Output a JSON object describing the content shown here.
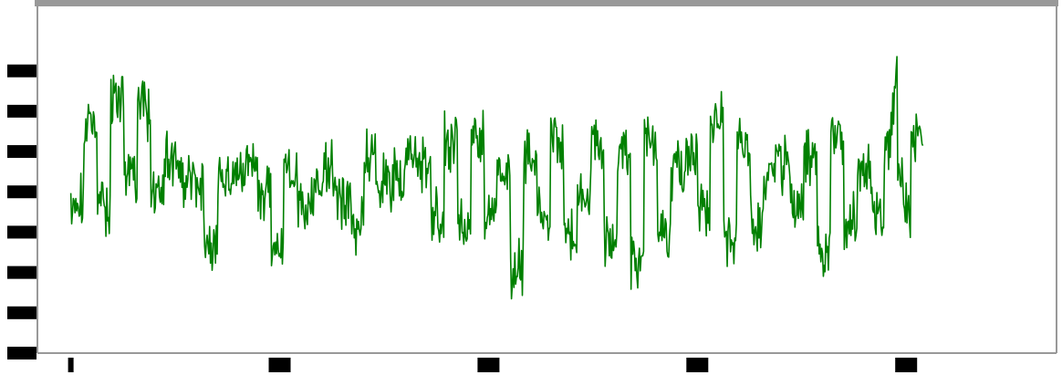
{
  "chart_data": {
    "type": "line",
    "title": "",
    "xlabel": "",
    "ylabel": "",
    "xlim": [
      -40,
      1180
    ],
    "ylim": [
      -4.0,
      4.6
    ],
    "x_ticks": [
      0,
      250,
      500,
      750,
      1000
    ],
    "y_ticks": [
      3.0,
      2.0,
      1.0,
      0.0,
      -1.0,
      -2.0,
      -3.0,
      -4.0
    ],
    "x_tick_labels": [
      "",
      "",
      "",
      "",
      ""
    ],
    "y_tick_labels": [
      "",
      "",
      "",
      "",
      "",
      "",
      "",
      ""
    ],
    "grid": false,
    "legend": "none",
    "colors": {
      "line": "#008000",
      "frame": "#999999",
      "background": "#ffffff"
    },
    "series": [
      {
        "n_points": 1020,
        "shape": "stationary noise about 0 with brief excursions; sharp spike near x~990",
        "values": [
          -0.4,
          1.9,
          -0.5,
          2.8,
          0.5,
          2.4,
          0.0,
          1.0,
          0.4,
          0.1,
          -1.6,
          0.4,
          0.6,
          0.9,
          -0.1,
          -1.6,
          0.6,
          -0.5,
          0.0,
          0.6,
          -0.2,
          -1.0,
          0.9,
          0.3,
          0.4,
          0.9,
          0.8,
          -0.7,
          1.5,
          -0.9,
          1.7,
          -0.7,
          0.5,
          -2.3,
          1.2,
          -0.8,
          1.3,
          -1.2,
          -0.3,
          1.4,
          -1.5,
          1.1,
          -2.0,
          1.7,
          -1.1,
          0.6,
          1.0,
          -0.7,
          2.1,
          -1.4,
          1.4,
          -0.9,
          0.6,
          0.8,
          -0.5,
          1.0,
          -1.6,
          1.5,
          -0.8,
          0.8,
          -0.6,
          1.0,
          -1.1,
          1.5
        ]
      }
    ]
  }
}
